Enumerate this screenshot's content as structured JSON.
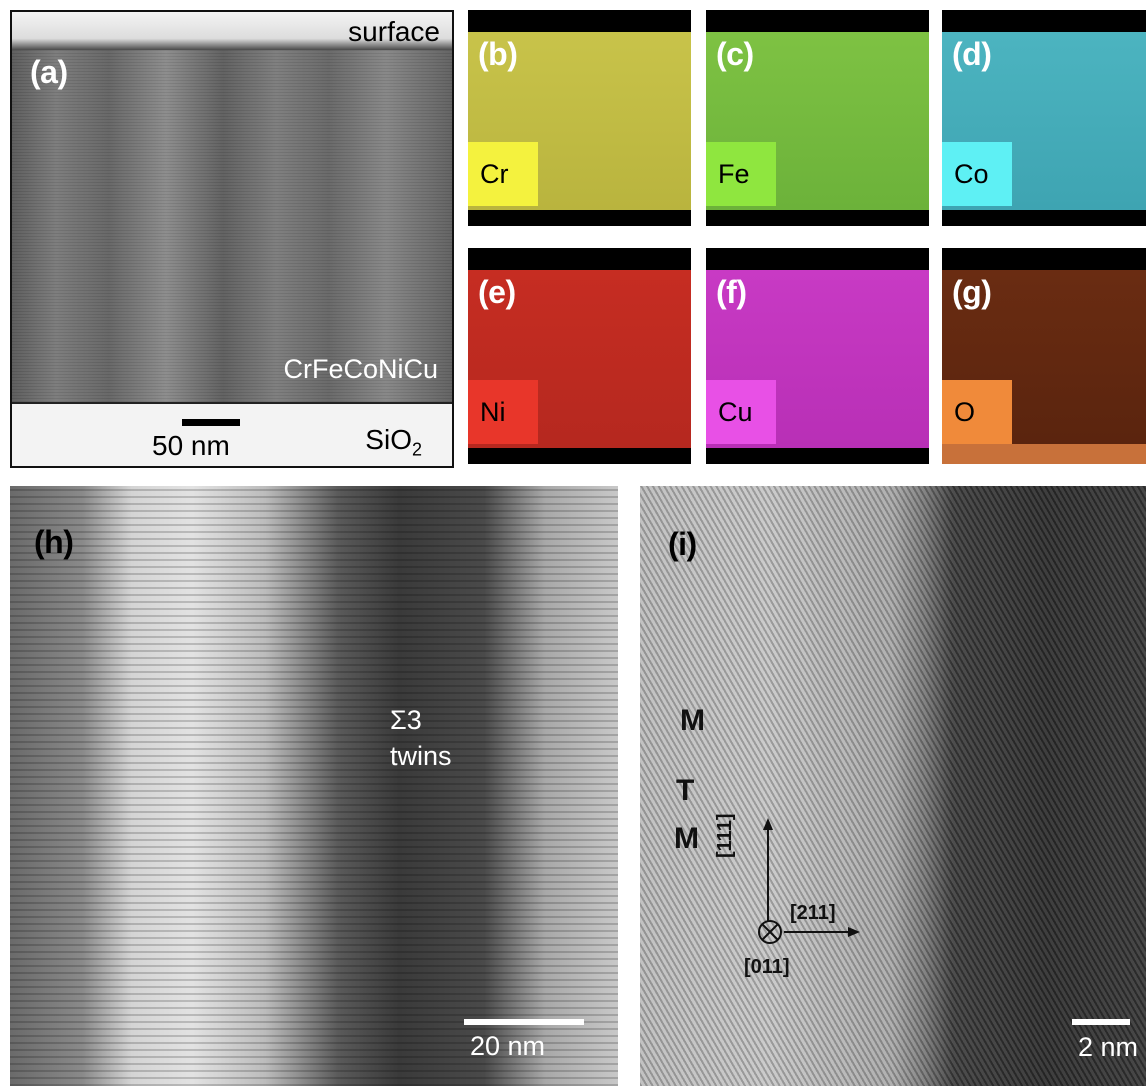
{
  "panel_a": {
    "label": "(a)",
    "surface": "surface",
    "film": "CrFeCoNiCu",
    "scale": "50 nm",
    "substrate_main": "SiO",
    "substrate_sub": "2"
  },
  "eds": [
    {
      "label": "(b)",
      "element": "Cr",
      "color": "#c8c34a"
    },
    {
      "label": "(c)",
      "element": "Fe",
      "color": "#7ec243"
    },
    {
      "label": "(d)",
      "element": "Co",
      "color": "#4cb4c0"
    },
    {
      "label": "(e)",
      "element": "Ni",
      "color": "#c62d22"
    },
    {
      "label": "(f)",
      "element": "Cu",
      "color": "#c83ac4"
    },
    {
      "label": "(g)",
      "element": "O",
      "color": "#6a2c12"
    }
  ],
  "panel_h": {
    "label": "(h)",
    "annotation_line1": "Σ3",
    "annotation_line2": "twins",
    "scale": "20 nm"
  },
  "panel_i": {
    "label": "(i)",
    "layer_top": "M",
    "layer_mid": "T",
    "layer_bottom": "M",
    "dir_vertical": "[111]",
    "dir_horizontal": "[211]",
    "dir_zone": "[011]",
    "scale": "2 nm"
  }
}
